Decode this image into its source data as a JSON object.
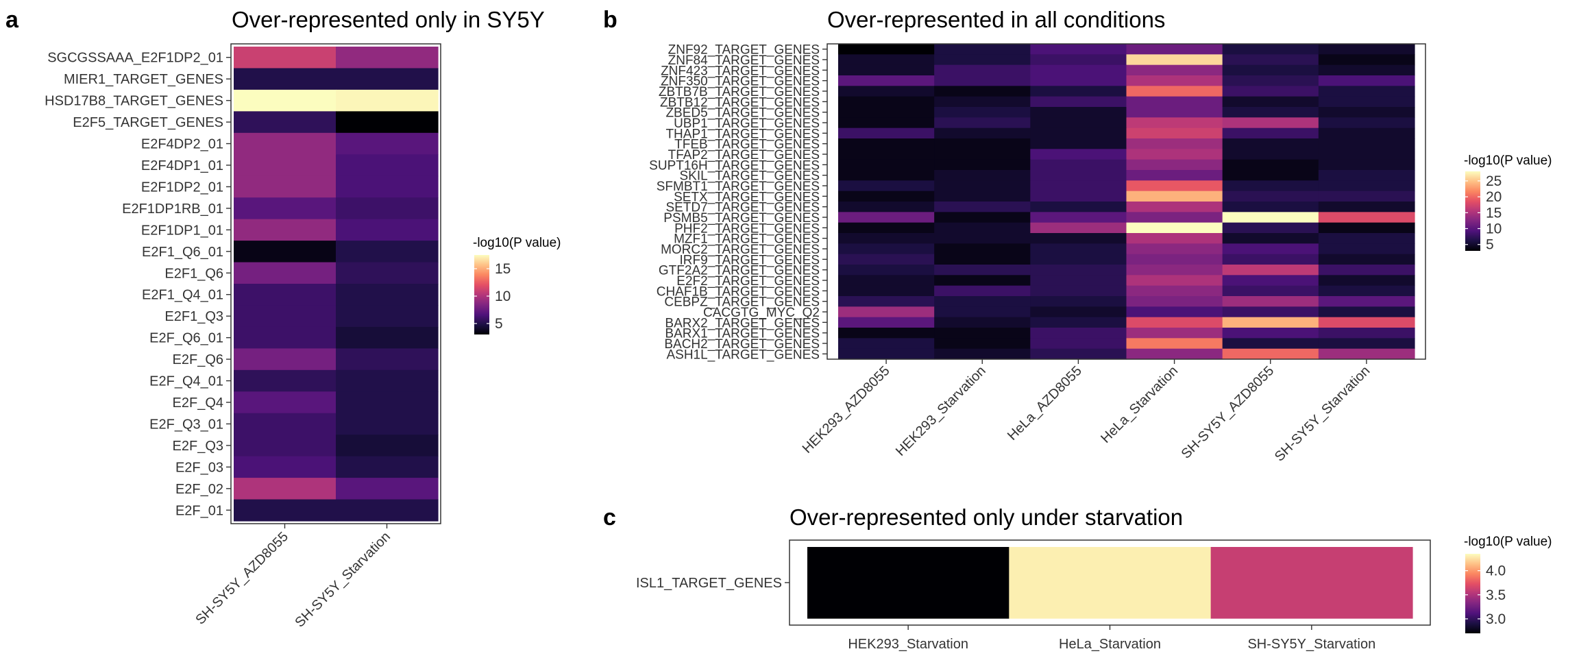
{
  "colors": {
    "magma_stops": [
      "#000004",
      "#1c1044",
      "#4f127b",
      "#812581",
      "#b5367a",
      "#e55064",
      "#fb8761",
      "#fec287",
      "#fcfdbf"
    ],
    "frame": "#333333",
    "tick": "#333333"
  },
  "chart_data": [
    {
      "type": "heatmap",
      "panel_label": "a",
      "title": "Over-represented only in SY5Y",
      "x": [
        "SH-SY5Y_AZD8055",
        "SH-SY5Y_Starvation"
      ],
      "y": [
        "SGCGSSAAA_E2F1DP2_01",
        "MIER1_TARGET_GENES",
        "HSD17B8_TARGET_GENES",
        "E2F5_TARGET_GENES",
        "E2F4DP2_01",
        "E2F4DP1_01",
        "E2F1DP2_01",
        "E2F1DP1RB_01",
        "E2F1DP1_01",
        "E2F1_Q6_01",
        "E2F1_Q6",
        "E2F1_Q4_01",
        "E2F1_Q3",
        "E2F_Q6_01",
        "E2F_Q6",
        "E2F_Q4_01",
        "E2F_Q4",
        "E2F_Q3_01",
        "E2F_Q3",
        "E2F_03",
        "E2F_02",
        "E2F_01"
      ],
      "values": [
        [
          11,
          9
        ],
        [
          5,
          5
        ],
        [
          17.5,
          17.3
        ],
        [
          5.5,
          3
        ],
        [
          9,
          7
        ],
        [
          9,
          6.5
        ],
        [
          9,
          6.5
        ],
        [
          7,
          6
        ],
        [
          9,
          6.5
        ],
        [
          3.5,
          5
        ],
        [
          8,
          5.5
        ],
        [
          6,
          5
        ],
        [
          6,
          5
        ],
        [
          6,
          4.5
        ],
        [
          8,
          5.5
        ],
        [
          5.5,
          5
        ],
        [
          7,
          5
        ],
        [
          6,
          5
        ],
        [
          6,
          4.5
        ],
        [
          6.5,
          5
        ],
        [
          10,
          7
        ],
        [
          5,
          5
        ]
      ],
      "legend_title": "-log10(P value)",
      "scale": {
        "min": 3,
        "max": 17.5,
        "ticks": [
          5,
          10,
          15
        ]
      }
    },
    {
      "type": "heatmap",
      "panel_label": "b",
      "title": "Over-represented in all conditions",
      "x": [
        "HEK293_AZD8055",
        "HEK293_Starvation",
        "HeLa_AZD8055",
        "HeLa_Starvation",
        "SH-SY5Y_AZD8055",
        "SH-SY5Y_Starvation"
      ],
      "y": [
        "ZNF92_TARGET_GENES",
        "ZNF84_TARGET_GENES",
        "ZNF423_TARGET_GENES",
        "ZNF350_TARGET_GENES",
        "ZBTB7B_TARGET_GENES",
        "ZBTB12_TARGET_GENES",
        "ZBED5_TARGET_GENES",
        "UBP1_TARGET_GENES",
        "THAP1_TARGET_GENES",
        "TFEB_TARGET_GENES",
        "TFAP2_TARGET_GENES",
        "SUPT16H_TARGET_GENES",
        "SKIL_TARGET_GENES",
        "SFMBT1_TARGET_GENES",
        "SETX_TARGET_GENES",
        "SETD7_TARGET_GENES",
        "PSMB5_TARGET_GENES",
        "PHF2_TARGET_GENES",
        "MZF1_TARGET_GENES",
        "MORC2_TARGET_GENES",
        "IRF9_TARGET_GENES",
        "GTF2A2_TARGET_GENES",
        "E2F2_TARGET_GENES",
        "CHAF1B_TARGET_GENES",
        "CEBPZ_TARGET_GENES",
        "CACGTG_MYC_Q2",
        "BARX2_TARGET_GENES",
        "BARX1_TARGET_GENES",
        "BACH2_TARGET_GENES",
        "ASH1L_TARGET_GENES"
      ],
      "values": [
        [
          3,
          6,
          9,
          11,
          6,
          5
        ],
        [
          5,
          6,
          8,
          26,
          7,
          4
        ],
        [
          5,
          8,
          9,
          13,
          6,
          5
        ],
        [
          10,
          8,
          9,
          15,
          7,
          9
        ],
        [
          5,
          4,
          6,
          20,
          8,
          6
        ],
        [
          4,
          5,
          8,
          11,
          5,
          6
        ],
        [
          4,
          6,
          5,
          11,
          6,
          5
        ],
        [
          4,
          7,
          5,
          16,
          15,
          6
        ],
        [
          8,
          5,
          5,
          17,
          8,
          5
        ],
        [
          4,
          4,
          5,
          14,
          5,
          5
        ],
        [
          4,
          4,
          9,
          15,
          5,
          5
        ],
        [
          4,
          4,
          8,
          13,
          4,
          5
        ],
        [
          4,
          5,
          8,
          11,
          4,
          6
        ],
        [
          6,
          5,
          8,
          19,
          6,
          6
        ],
        [
          4,
          5,
          8,
          24,
          7,
          7
        ],
        [
          5,
          7,
          6,
          15,
          6,
          5
        ],
        [
          11,
          4,
          10,
          12,
          28,
          18
        ],
        [
          4,
          5,
          14,
          28,
          7,
          4
        ],
        [
          5,
          5,
          5,
          15,
          5,
          6
        ],
        [
          6,
          4,
          6,
          13,
          9,
          6
        ],
        [
          7,
          4,
          6,
          12,
          8,
          5
        ],
        [
          6,
          7,
          7,
          13,
          16,
          8
        ],
        [
          5,
          4,
          7,
          15,
          9,
          5
        ],
        [
          5,
          8,
          7,
          13,
          8,
          6
        ],
        [
          7,
          6,
          6,
          12,
          14,
          10
        ],
        [
          14,
          6,
          5,
          9,
          8,
          6
        ],
        [
          10,
          5,
          6,
          18,
          24,
          18
        ],
        [
          4,
          4,
          8,
          14,
          9,
          8
        ],
        [
          6,
          4,
          8,
          21,
          6,
          6
        ],
        [
          6,
          5,
          7,
          13,
          20,
          14
        ]
      ],
      "legend_title": "-log10(P value)",
      "scale": {
        "min": 3,
        "max": 28,
        "ticks": [
          5,
          10,
          15,
          20,
          25
        ]
      }
    },
    {
      "type": "heatmap",
      "panel_label": "c",
      "title": "Over-represented only under starvation",
      "x": [
        "HEK293_Starvation",
        "HeLa_Starvation",
        "SH-SY5Y_Starvation"
      ],
      "y": [
        "ISL1_TARGET_GENES"
      ],
      "values": [
        [
          2.7,
          4.3,
          3.6
        ]
      ],
      "legend_title": "-log10(P value)",
      "scale": {
        "min": 2.7,
        "max": 4.35,
        "ticks": [
          3.0,
          3.5,
          4.0
        ]
      }
    }
  ]
}
